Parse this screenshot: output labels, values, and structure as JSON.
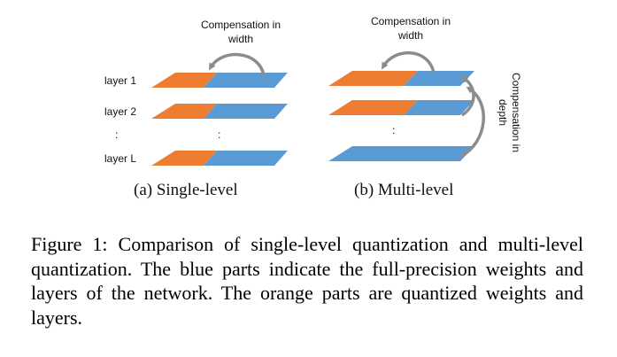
{
  "single": {
    "comp_line1": "Compensation in",
    "comp_line2": "width",
    "layers": [
      "layer 1",
      "layer 2",
      "layer L"
    ],
    "dots": ":",
    "subcaption": "(a)  Single-level"
  },
  "multi": {
    "comp_line1": "Compensation in",
    "comp_line2": "width",
    "depth_line1": "Compensation in",
    "depth_line2": "depth",
    "dots": ":",
    "subcaption": "(b)  Multi-level"
  },
  "caption": "Figure 1: Comparison of single-level quantization and multi-level quantization. The blue parts indicate the full-precision weights and layers of the network. The orange parts are quantized weights and layers.",
  "colors": {
    "orange": "#ED7D31",
    "blue": "#5B9BD5",
    "arrow": "#8C8C8C"
  }
}
